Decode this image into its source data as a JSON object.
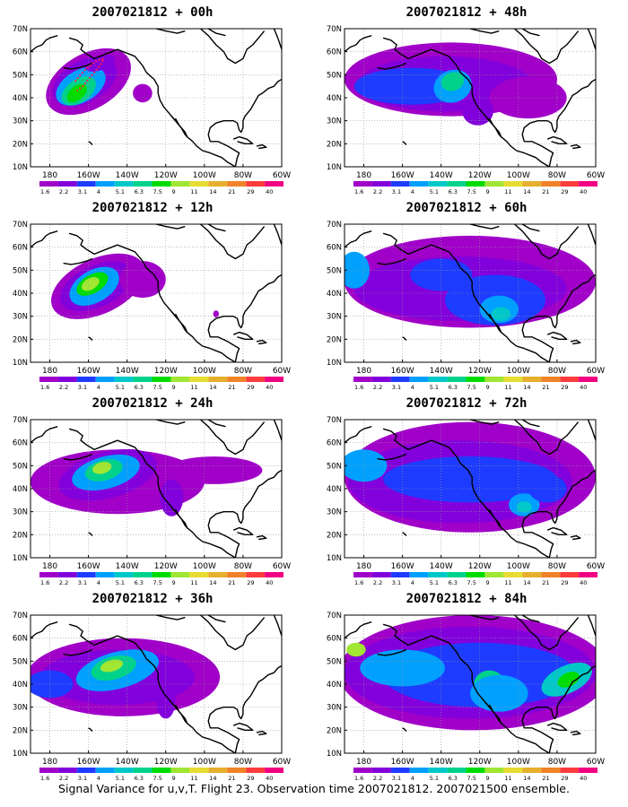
{
  "panels": [
    {
      "title": "2007021812 + 00h"
    },
    {
      "title": "2007021812 + 48h"
    },
    {
      "title": "2007021812 + 12h"
    },
    {
      "title": "2007021812 + 60h"
    },
    {
      "title": "2007021812 + 24h"
    },
    {
      "title": "2007021812 + 72h"
    },
    {
      "title": "2007021812 + 36h"
    },
    {
      "title": "2007021812 + 84h"
    }
  ],
  "map": {
    "lat_labels": [
      "10N",
      "20N",
      "30N",
      "40N",
      "50N",
      "60N",
      "70N"
    ],
    "lon_labels": [
      "180",
      "160W",
      "140W",
      "120W",
      "100W",
      "80W",
      "60W"
    ],
    "lat_range": [
      10,
      70
    ],
    "lon_range": [
      170,
      300
    ]
  },
  "colorbar": {
    "labels": [
      "1.6",
      "2.2",
      "3.1",
      "4",
      "5.1",
      "6.3",
      "7.5",
      "9",
      "11",
      "14",
      "21",
      "29",
      "40"
    ],
    "colors": [
      "#a000c8",
      "#8200dc",
      "#1e3cff",
      "#00a0ff",
      "#00c8c8",
      "#00d28c",
      "#00dc00",
      "#a0e632",
      "#e6dc32",
      "#e6af2d",
      "#f08228",
      "#fa3c3c",
      "#f00082"
    ]
  },
  "footer": "Signal Variance for u,v,T. Flight 23. Observation time 2007021812. 2007021500 ensemble."
}
